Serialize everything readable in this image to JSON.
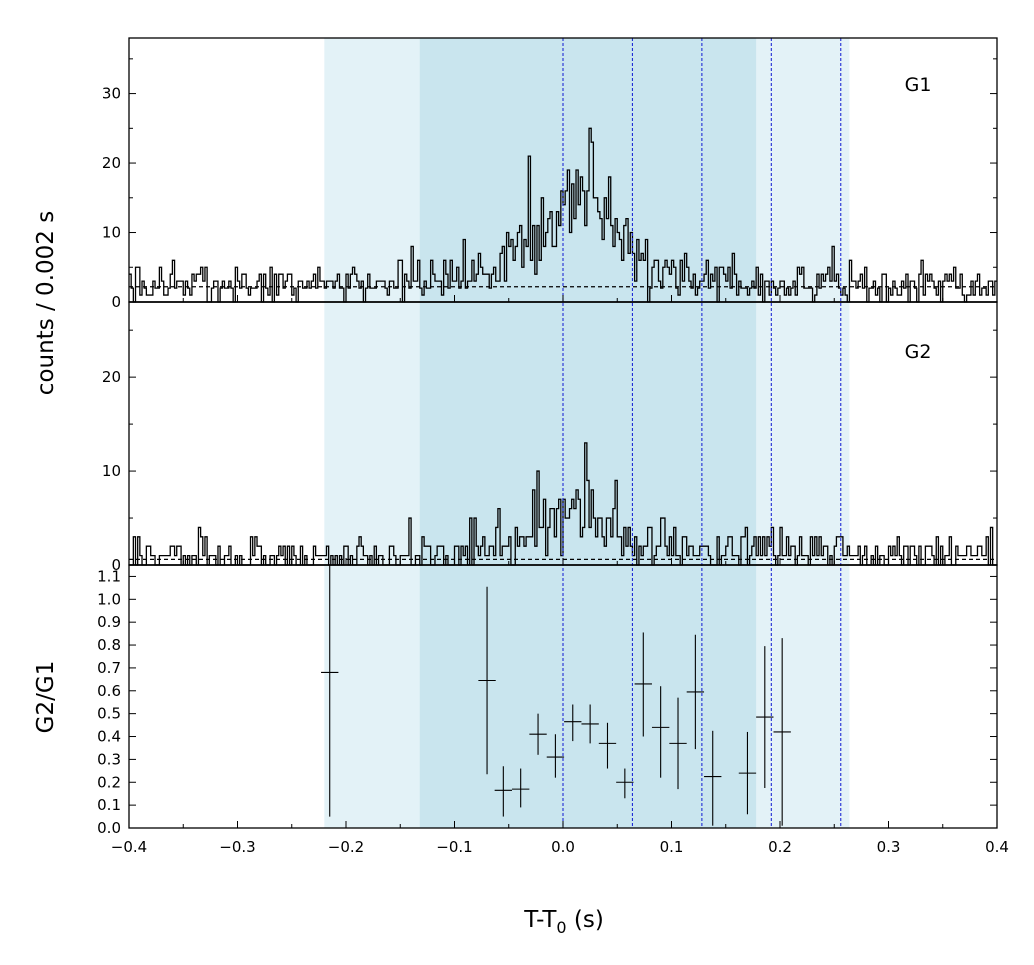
{
  "chart_data": {
    "type": "line",
    "xlabel": "T-T",
    "xlabel_sub": "0",
    "xlabel_unit": " (s)",
    "ylabel_counts": "counts /  0.002 s",
    "ylabel_ratio": "G2/G1",
    "xlim": [
      -0.4,
      0.4
    ],
    "x_ticks": [
      -0.4,
      -0.3,
      -0.2,
      -0.1,
      0.0,
      0.1,
      0.2,
      0.3,
      0.4
    ],
    "x_tick_labels": [
      "−0.4",
      "−0.3",
      "−0.2",
      "−0.1",
      "0.0",
      "0.1",
      "0.2",
      "0.3",
      "0.4"
    ],
    "colors": {
      "outer_band": "#e3f2f7",
      "inner_band": "#c9e5ee",
      "divider": "#1f2bd6",
      "line": "#000000"
    },
    "bands": {
      "outer": [
        -0.22,
        0.264
      ],
      "inner": [
        -0.132,
        0.178
      ]
    },
    "dividers": [
      0.0,
      0.064,
      0.128,
      0.192,
      0.256
    ],
    "top_panel": {
      "label": "G1",
      "ylim": [
        0,
        38
      ],
      "y_ticks": [
        0,
        10,
        20,
        30
      ],
      "y_tick_labels": [
        "0",
        "10",
        "20",
        "30"
      ],
      "background_level": 2.2,
      "bin_width": 0.002,
      "profile": [
        {
          "x": -0.4,
          "y": 2.3
        },
        {
          "x": -0.2,
          "y": 2.6
        },
        {
          "x": -0.1,
          "y": 3.5
        },
        {
          "x": -0.06,
          "y": 6
        },
        {
          "x": -0.03,
          "y": 10
        },
        {
          "x": 0.0,
          "y": 14
        },
        {
          "x": 0.015,
          "y": 19
        },
        {
          "x": 0.03,
          "y": 15
        },
        {
          "x": 0.05,
          "y": 10
        },
        {
          "x": 0.08,
          "y": 5
        },
        {
          "x": 0.13,
          "y": 3.5
        },
        {
          "x": 0.2,
          "y": 2.7
        },
        {
          "x": 0.4,
          "y": 2.3
        }
      ]
    },
    "middle_panel": {
      "label": "G2",
      "ylim": [
        0,
        28
      ],
      "y_ticks": [
        0,
        10,
        20
      ],
      "y_tick_labels": [
        "0",
        "10",
        "20"
      ],
      "background_level": 0.6,
      "bin_width": 0.002,
      "profile": [
        {
          "x": -0.4,
          "y": 0.9
        },
        {
          "x": -0.1,
          "y": 1.2
        },
        {
          "x": -0.05,
          "y": 2.2
        },
        {
          "x": -0.02,
          "y": 5
        },
        {
          "x": 0.0,
          "y": 4
        },
        {
          "x": 0.015,
          "y": 9
        },
        {
          "x": 0.03,
          "y": 6
        },
        {
          "x": 0.05,
          "y": 3
        },
        {
          "x": 0.08,
          "y": 2
        },
        {
          "x": 0.15,
          "y": 1.4
        },
        {
          "x": 0.4,
          "y": 0.9
        }
      ]
    },
    "ratio_panel": {
      "ylim": [
        0.0,
        1.15
      ],
      "y_ticks": [
        0.0,
        0.1,
        0.2,
        0.3,
        0.4,
        0.5,
        0.6,
        0.7,
        0.8,
        0.9,
        1.0,
        1.1
      ],
      "y_tick_labels": [
        "0.0",
        "0.1",
        "0.2",
        "0.3",
        "0.4",
        "0.5",
        "0.6",
        "0.7",
        "0.8",
        "0.9",
        "1.0",
        "1.1"
      ],
      "points": [
        {
          "x": -0.215,
          "xerr": 0.008,
          "y": 0.68,
          "ylo": 0.05,
          "yhi": 1.15
        },
        {
          "x": -0.07,
          "xerr": 0.008,
          "y": 0.645,
          "ylo": 0.235,
          "yhi": 1.055
        },
        {
          "x": -0.055,
          "xerr": 0.008,
          "y": 0.165,
          "ylo": 0.05,
          "yhi": 0.27
        },
        {
          "x": -0.039,
          "xerr": 0.008,
          "y": 0.17,
          "ylo": 0.09,
          "yhi": 0.26
        },
        {
          "x": -0.023,
          "xerr": 0.008,
          "y": 0.41,
          "ylo": 0.32,
          "yhi": 0.5
        },
        {
          "x": -0.007,
          "xerr": 0.008,
          "y": 0.31,
          "ylo": 0.22,
          "yhi": 0.41
        },
        {
          "x": 0.009,
          "xerr": 0.008,
          "y": 0.465,
          "ylo": 0.38,
          "yhi": 0.54
        },
        {
          "x": 0.025,
          "xerr": 0.008,
          "y": 0.455,
          "ylo": 0.37,
          "yhi": 0.54
        },
        {
          "x": 0.041,
          "xerr": 0.008,
          "y": 0.37,
          "ylo": 0.26,
          "yhi": 0.46
        },
        {
          "x": 0.057,
          "xerr": 0.008,
          "y": 0.2,
          "ylo": 0.13,
          "yhi": 0.26
        },
        {
          "x": 0.074,
          "xerr": 0.008,
          "y": 0.63,
          "ylo": 0.4,
          "yhi": 0.855
        },
        {
          "x": 0.09,
          "xerr": 0.008,
          "y": 0.44,
          "ylo": 0.22,
          "yhi": 0.62
        },
        {
          "x": 0.106,
          "xerr": 0.008,
          "y": 0.37,
          "ylo": 0.17,
          "yhi": 0.57
        },
        {
          "x": 0.122,
          "xerr": 0.008,
          "y": 0.595,
          "ylo": 0.345,
          "yhi": 0.845
        },
        {
          "x": 0.138,
          "xerr": 0.008,
          "y": 0.225,
          "ylo": 0.01,
          "yhi": 0.425
        },
        {
          "x": 0.17,
          "xerr": 0.008,
          "y": 0.24,
          "ylo": 0.06,
          "yhi": 0.42
        },
        {
          "x": 0.186,
          "xerr": 0.008,
          "y": 0.485,
          "ylo": 0.175,
          "yhi": 0.795
        },
        {
          "x": 0.202,
          "xerr": 0.008,
          "y": 0.42,
          "ylo": 0.01,
          "yhi": 0.83
        }
      ]
    }
  }
}
